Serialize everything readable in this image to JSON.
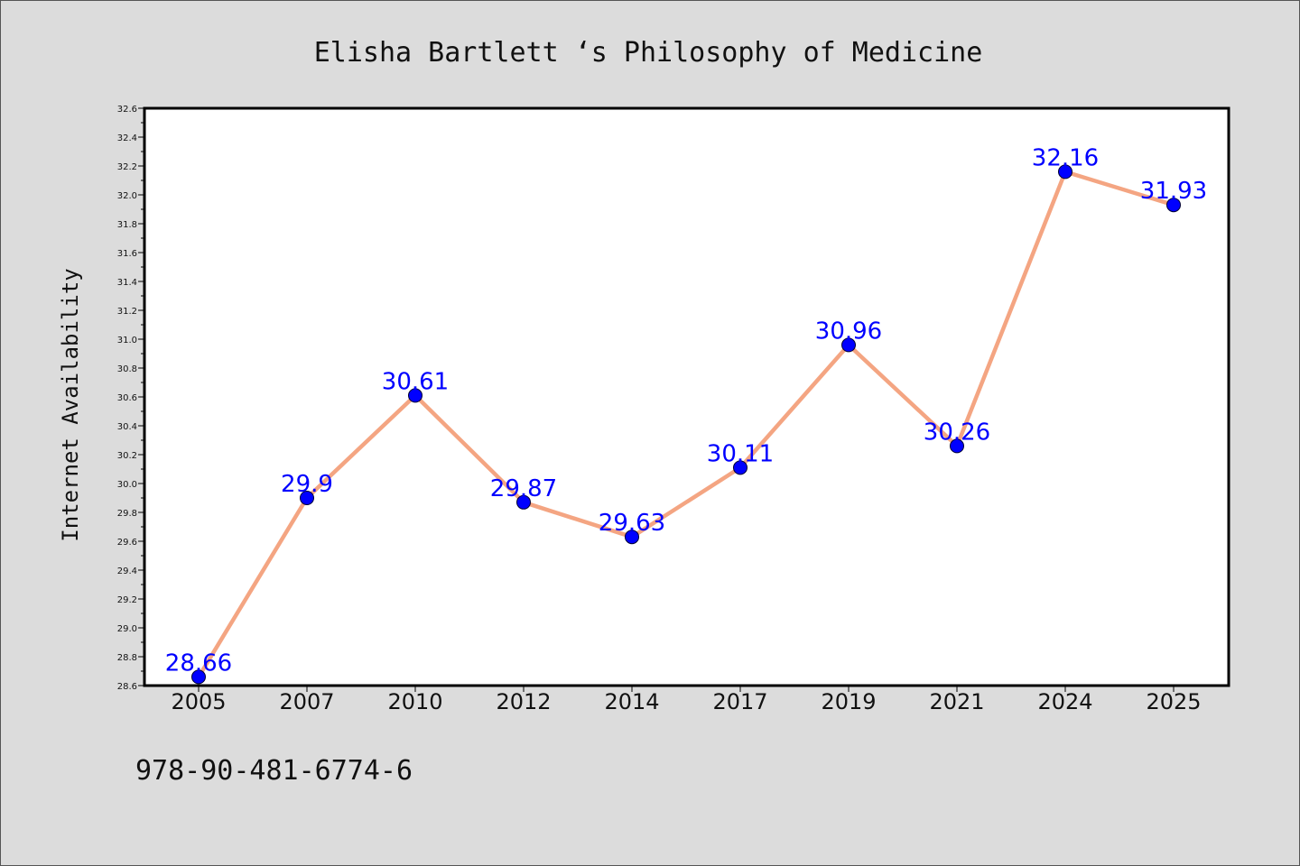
{
  "chart_data": {
    "type": "line",
    "title": "Elisha Bartlett ‘s Philosophy of Medicine",
    "xlabel": "",
    "ylabel": "Internet Availability",
    "categories": [
      "2005",
      "2007",
      "2010",
      "2012",
      "2014",
      "2017",
      "2019",
      "2021",
      "2024",
      "2025"
    ],
    "series": [
      {
        "values": [
          28.66,
          29.9,
          30.61,
          29.87,
          29.63,
          30.11,
          30.96,
          30.26,
          32.16,
          31.93
        ],
        "labels": [
          "28.66",
          "29.9",
          "30.61",
          "29.87",
          "29.63",
          "30.11",
          "30.96",
          "30.26",
          "32.16",
          "31.93"
        ]
      }
    ],
    "ylim": [
      28.6,
      32.6
    ],
    "yticks": [
      "28.6",
      "28.8",
      "29.0",
      "29.2",
      "29.4",
      "29.6",
      "29.8",
      "30.0",
      "30.2",
      "30.4",
      "30.6",
      "30.8",
      "31.0",
      "31.2",
      "31.4",
      "31.6",
      "31.8",
      "32.0",
      "32.2",
      "32.4",
      "32.6"
    ],
    "grid": false,
    "legend": "none",
    "colors": {
      "line": "#f4a582",
      "marker": "#0000ff",
      "data_label": "#0000ff",
      "background": "#dcdcdc",
      "plot_background": "#ffffff"
    }
  },
  "footer": {
    "code": "978-90-481-6774-6"
  }
}
